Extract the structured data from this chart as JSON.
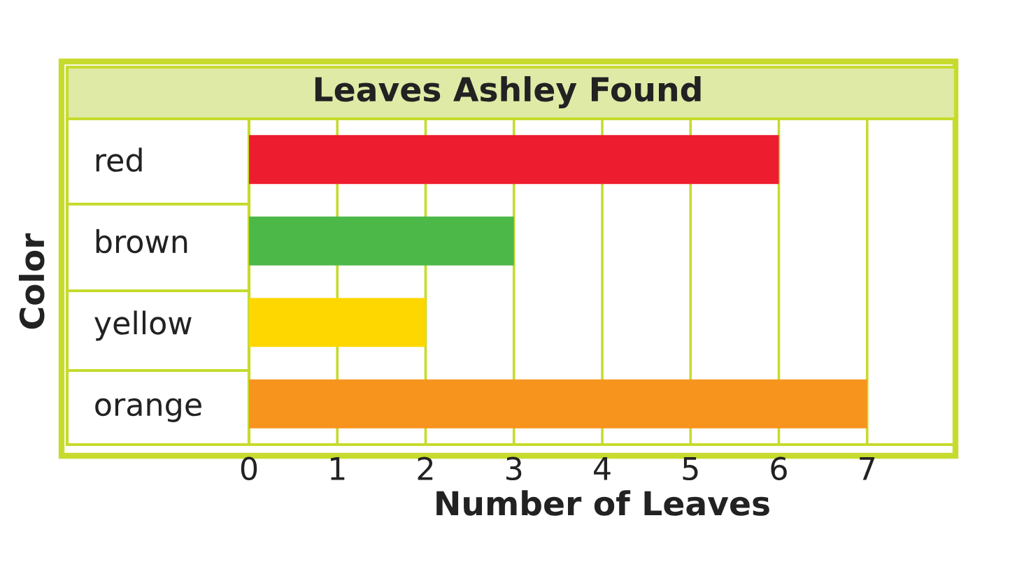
{
  "chart_data": {
    "type": "bar",
    "orientation": "horizontal",
    "title": "Leaves Ashley Found",
    "xlabel": "Number of Leaves",
    "ylabel": "Color",
    "categories": [
      "red",
      "brown",
      "yellow",
      "orange"
    ],
    "values": [
      6,
      3,
      2,
      7
    ],
    "colors": [
      "#ed1c2e",
      "#4cb848",
      "#ffd700",
      "#f7941d"
    ],
    "xlim": [
      0,
      8
    ],
    "xticks": [
      0,
      1,
      2,
      3,
      4,
      5,
      6,
      7
    ],
    "grid": "x"
  }
}
